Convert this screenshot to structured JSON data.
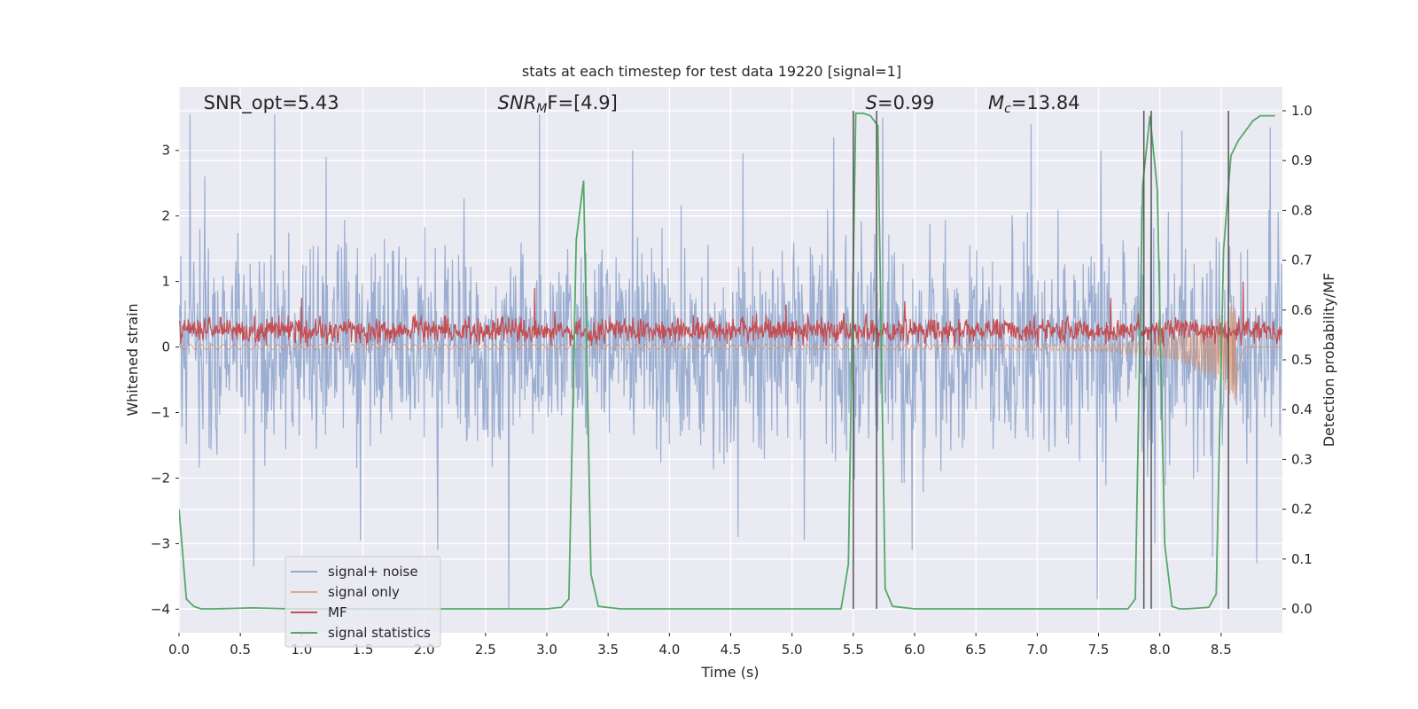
{
  "chart_data": {
    "type": "line",
    "title": "stats at each timestep for test data 19220 [signal=1]",
    "xlabel": "Time (s)",
    "ylabel_left": "Whitened strain",
    "ylabel_right": "Detection probability/MF",
    "xlim": [
      0.0,
      9.0
    ],
    "ylim_left": [
      -4.36,
      3.97
    ],
    "ylim_right": [
      -0.048,
      1.048
    ],
    "xticks": [
      0.0,
      0.5,
      1.0,
      1.5,
      2.0,
      2.5,
      3.0,
      3.5,
      4.0,
      4.5,
      5.0,
      5.5,
      6.0,
      6.5,
      7.0,
      7.5,
      8.0,
      8.5
    ],
    "xtick_labels": [
      "0.0",
      "0.5",
      "1.0",
      "1.5",
      "2.0",
      "2.5",
      "3.0",
      "3.5",
      "4.0",
      "4.5",
      "5.0",
      "5.5",
      "6.0",
      "6.5",
      "7.0",
      "7.5",
      "8.0",
      "8.5"
    ],
    "yticks_left": [
      -4,
      -3,
      -2,
      -1,
      0,
      1,
      2,
      3
    ],
    "ytick_labels_left": [
      "−4",
      "−3",
      "−2",
      "−1",
      "0",
      "1",
      "2",
      "3"
    ],
    "yticks_right": [
      0.0,
      0.1,
      0.2,
      0.3,
      0.4,
      0.5,
      0.6,
      0.7,
      0.8,
      0.9,
      1.0
    ],
    "ytick_labels_right": [
      "0.0",
      "0.1",
      "0.2",
      "0.3",
      "0.4",
      "0.5",
      "0.6",
      "0.7",
      "0.8",
      "0.9",
      "1.0"
    ],
    "grid": true,
    "legend_position": "lower-left",
    "annotations": [
      {
        "label": "SNR_opt=5.43",
        "x": 0.2
      },
      {
        "label": "SNR",
        "sub": "M",
        "rest": "F=[4.9]",
        "italic": true,
        "x": 2.6
      },
      {
        "label": "S",
        "rest": "=0.99",
        "italic": true,
        "x": 5.6
      },
      {
        "label": "M",
        "sub": "c",
        "rest": "=13.84",
        "italic": true,
        "x": 6.6
      }
    ],
    "series": [
      {
        "name": "signal+ noise",
        "color": "#4c72b0",
        "axis": "left",
        "kind": "noise",
        "envelope": 1.8,
        "peaks": [
          [
            0.09,
            3.55
          ],
          [
            0.21,
            2.6
          ],
          [
            0.78,
            3.55
          ],
          [
            1.2,
            2.9
          ],
          [
            2.94,
            3.55
          ],
          [
            3.7,
            3.0
          ],
          [
            4.6,
            2.95
          ],
          [
            5.34,
            3.2
          ],
          [
            5.74,
            3.5
          ],
          [
            6.95,
            3.4
          ],
          [
            7.52,
            3.0
          ],
          [
            8.18,
            3.3
          ],
          [
            8.9,
            3.35
          ]
        ],
        "troughs": [
          [
            0.61,
            -3.35
          ],
          [
            1.48,
            -2.95
          ],
          [
            2.11,
            -3.1
          ],
          [
            2.69,
            -4.0
          ],
          [
            4.56,
            -2.9
          ],
          [
            5.1,
            -2.95
          ],
          [
            5.98,
            -3.1
          ],
          [
            7.49,
            -3.85
          ],
          [
            7.96,
            -3.0
          ],
          [
            8.43,
            -3.2
          ],
          [
            8.79,
            -3.3
          ]
        ]
      },
      {
        "name": "signal only",
        "color": "#dd8452",
        "axis": "left",
        "kind": "chirp",
        "t_merge": 8.62,
        "amp_peak": -0.8
      },
      {
        "name": "MF",
        "color": "#c44e52",
        "axis": "left",
        "kind": "mf",
        "mean": 0.25,
        "spread": 0.18,
        "peaks": [
          [
            1.0,
            0.75
          ],
          [
            2.9,
            0.9
          ],
          [
            4.95,
            0.65
          ],
          [
            5.92,
            0.7
          ],
          [
            7.6,
            0.75
          ],
          [
            8.68,
            1.0
          ]
        ]
      },
      {
        "name": "signal statistics",
        "color": "#55a868",
        "axis": "right",
        "kind": "line",
        "x": [
          0.0,
          0.06,
          0.12,
          0.18,
          0.3,
          0.6,
          0.9,
          1.5,
          2.0,
          2.5,
          3.0,
          3.12,
          3.18,
          3.24,
          3.3,
          3.36,
          3.42,
          3.6,
          4.0,
          4.5,
          5.0,
          5.4,
          5.46,
          5.52,
          5.58,
          5.64,
          5.7,
          5.76,
          5.82,
          6.0,
          6.5,
          7.0,
          7.5,
          7.74,
          7.8,
          7.86,
          7.92,
          7.98,
          8.04,
          8.1,
          8.16,
          8.22,
          8.4,
          8.46,
          8.52,
          8.58,
          8.64,
          8.7,
          8.76,
          8.82,
          8.88,
          8.94
        ],
        "y": [
          0.2,
          0.02,
          0.005,
          0.0,
          0.0,
          0.002,
          0.0,
          0.0,
          0.0,
          0.0,
          0.0,
          0.003,
          0.02,
          0.74,
          0.86,
          0.07,
          0.005,
          0.0,
          0.0,
          0.0,
          0.0,
          0.0,
          0.09,
          0.995,
          0.995,
          0.99,
          0.97,
          0.04,
          0.005,
          0.0,
          0.0,
          0.0,
          0.0,
          0.0,
          0.02,
          0.85,
          0.99,
          0.84,
          0.13,
          0.005,
          0.0,
          0.0,
          0.003,
          0.03,
          0.72,
          0.91,
          0.94,
          0.96,
          0.98,
          0.99,
          0.99,
          0.99
        ]
      },
      {
        "name": "",
        "color": "#555555",
        "axis": "right",
        "kind": "vlines",
        "x": [
          5.5,
          5.69,
          7.87,
          7.93,
          8.56
        ],
        "ymax": 1.0
      }
    ]
  }
}
